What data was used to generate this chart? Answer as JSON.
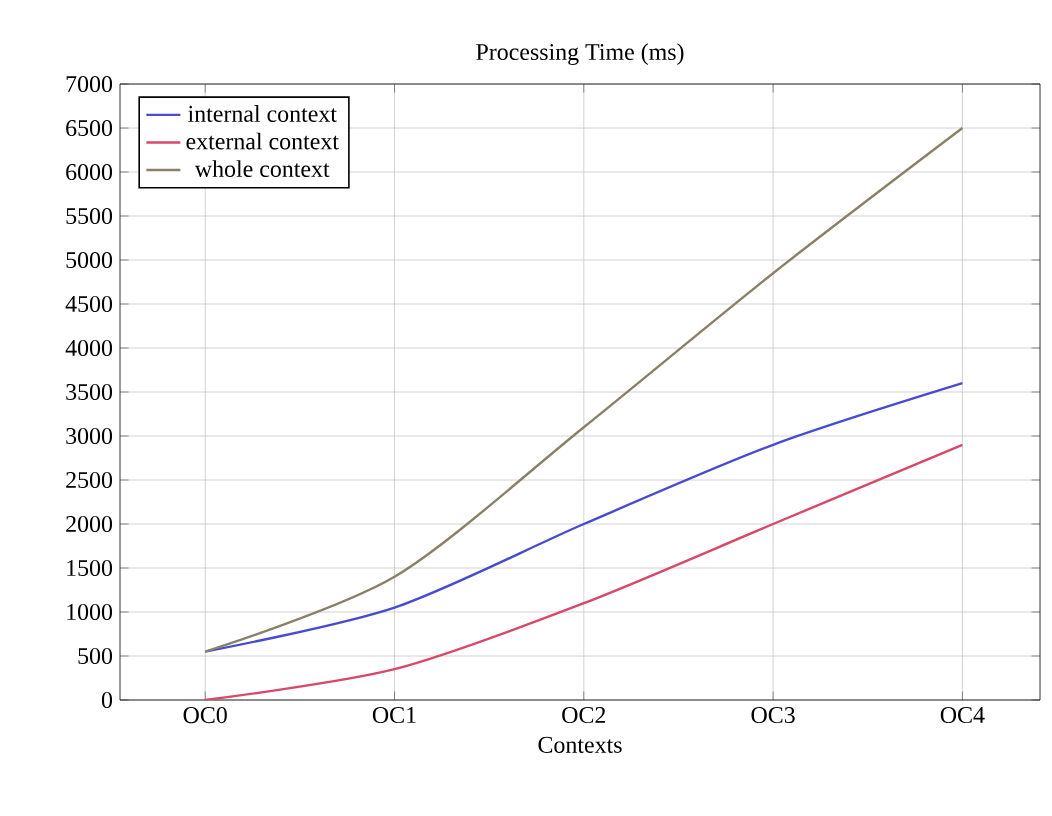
{
  "chart_data": {
    "type": "line",
    "title": "Processing Time (ms)",
    "xlabel": "Contexts",
    "categories": [
      "OC0",
      "OC1",
      "OC2",
      "OC3",
      "OC4"
    ],
    "series": [
      {
        "name": "internal context",
        "color": "#4a4ad0",
        "values": [
          550,
          1050,
          2000,
          2900,
          3600
        ]
      },
      {
        "name": "external context",
        "color": "#d84868",
        "values": [
          0,
          350,
          1100,
          2000,
          2900
        ]
      },
      {
        "name": "whole context",
        "color": "#8a8068",
        "values": [
          550,
          1400,
          3100,
          4850,
          6500
        ]
      }
    ],
    "ylim": [
      0,
      7000
    ],
    "yticks": [
      0,
      500,
      1000,
      1500,
      2000,
      2500,
      3000,
      3500,
      4000,
      4500,
      5000,
      5500,
      6000,
      6500,
      7000
    ],
    "grid": true,
    "legend": "top left",
    "marker": "none",
    "line_style": "solid"
  }
}
